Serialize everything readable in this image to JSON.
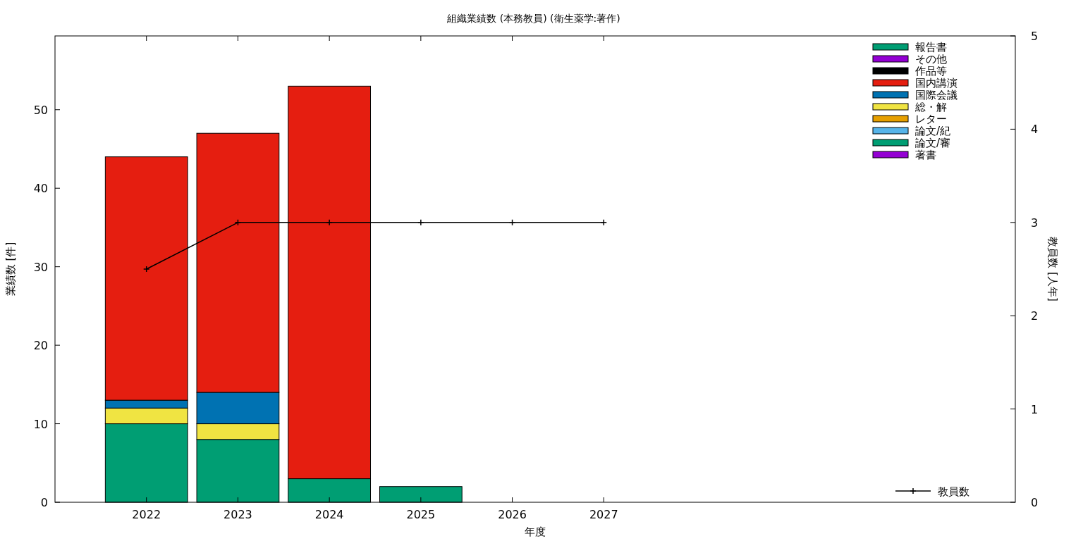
{
  "chart_data": {
    "type": "bar",
    "title": "組織業績数 (本務教員) (衛生薬学:著作)",
    "xlabel": "年度",
    "ylabel": "業績数 [件]",
    "y2label": "教員数 [人年]",
    "x": [
      2022,
      2023,
      2024,
      2025,
      2026,
      2027
    ],
    "xlim": [
      2021,
      2031.5
    ],
    "xticks": [
      2022,
      2023,
      2024,
      2025,
      2026,
      2027
    ],
    "ylim": [
      0,
      59.4
    ],
    "yticks": [
      0,
      10,
      20,
      30,
      40,
      50
    ],
    "y2lim": [
      0,
      5
    ],
    "y2ticks": [
      0,
      1,
      2,
      3,
      4,
      5
    ],
    "stacked": true,
    "legend": "right",
    "grid": false,
    "series": [
      {
        "name": "著書",
        "color": "#9400d3",
        "values": [
          0,
          0,
          0,
          0,
          0,
          0
        ]
      },
      {
        "name": "論文/審",
        "color": "#009e73",
        "values": [
          10,
          8,
          3,
          2,
          0,
          0
        ]
      },
      {
        "name": "論文/紀",
        "color": "#56b4e9",
        "values": [
          0,
          0,
          0,
          0,
          0,
          0
        ]
      },
      {
        "name": "レター",
        "color": "#e69f00",
        "values": [
          0,
          0,
          0,
          0,
          0,
          0
        ]
      },
      {
        "name": "総・解",
        "color": "#f0e442",
        "values": [
          2,
          2,
          0,
          0,
          0,
          0
        ]
      },
      {
        "name": "国際会議",
        "color": "#0072b2",
        "values": [
          1,
          4,
          0,
          0,
          0,
          0
        ]
      },
      {
        "name": "国内講演",
        "color": "#e51e10",
        "values": [
          31,
          33,
          50,
          0,
          0,
          0
        ]
      },
      {
        "name": "作品等",
        "color": "#000000",
        "values": [
          0,
          0,
          0,
          0,
          0,
          0
        ]
      },
      {
        "name": "その他",
        "color": "#9400d3",
        "values": [
          0,
          0,
          0,
          0,
          0,
          0
        ]
      },
      {
        "name": "報告書",
        "color": "#009e73",
        "values": [
          0,
          0,
          0,
          0,
          0,
          0
        ]
      },
      {
        "name": "教員数",
        "type": "line",
        "axis": "y2",
        "color": "#000000",
        "marker": "cross",
        "values": [
          2.5,
          3,
          3,
          3,
          3,
          3
        ]
      }
    ]
  }
}
